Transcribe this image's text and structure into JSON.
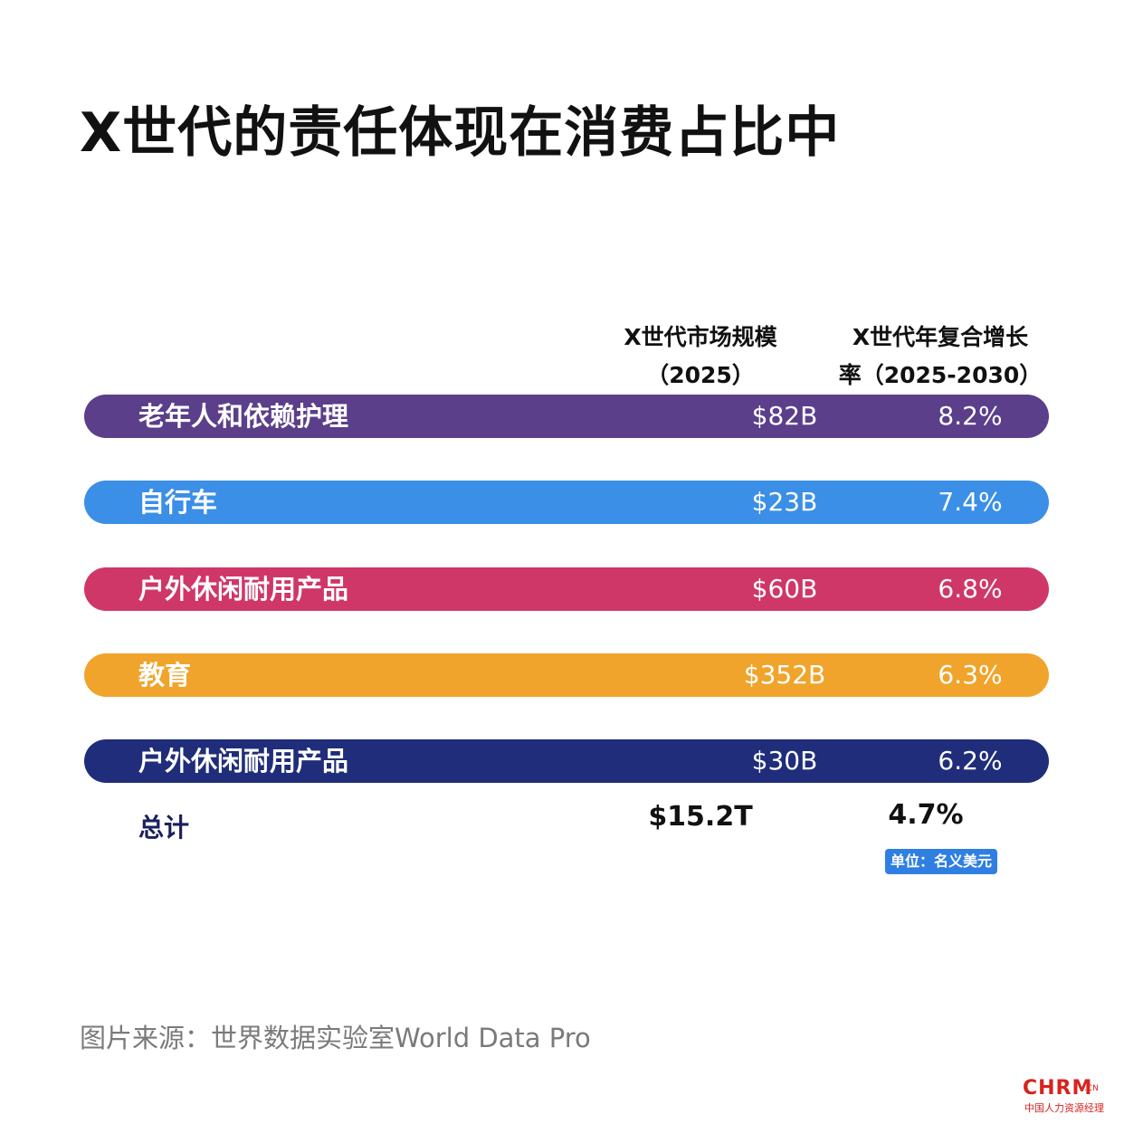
{
  "header": {
    "title": "X世代的责任体现在消费占比中"
  },
  "columns": {
    "market_size": [
      "X世代市场规模",
      "（2025）"
    ],
    "cagr": [
      "X世代年复合增长",
      "率（2025-2030）"
    ]
  },
  "chart_data": {
    "type": "table",
    "rows": [
      {
        "category": "老年人和依赖护理",
        "market_size": "$82B",
        "cagr": "8.2%",
        "color": "#5b3f8a"
      },
      {
        "category": "自行车",
        "market_size": "$23B",
        "cagr": "7.4%",
        "color": "#3b8fe6"
      },
      {
        "category": "户外休闲耐用产品",
        "market_size": "$60B",
        "cagr": "6.8%",
        "color": "#cf3768"
      },
      {
        "category": "教育",
        "market_size": "$352B",
        "cagr": "6.3%",
        "color": "#f0a42b"
      },
      {
        "category": "户外休闲耐用产品",
        "market_size": "$30B",
        "cagr": "6.2%",
        "color": "#1f2d7a"
      }
    ],
    "total": {
      "label": "总计",
      "market_size": "$15.2T",
      "cagr": "4.7%"
    },
    "unit_note": "单位：名义美元"
  },
  "footer": {
    "source": "图片来源：世界数据实验室World Data Pro",
    "logo_brand": "CHRM",
    "logo_suffix": ".CN",
    "logo_sub": "中国人力资源经理"
  }
}
